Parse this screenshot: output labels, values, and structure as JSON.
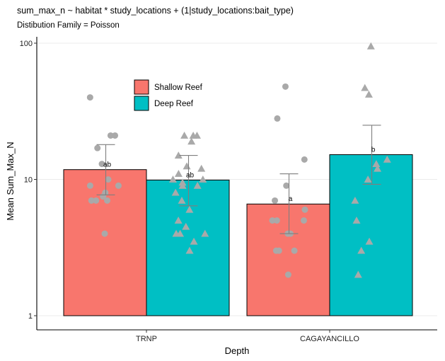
{
  "chart_data": {
    "type": "bar",
    "title": "sum_max_n ~  habitat * study_locations + (1|study_locations:bait_type)",
    "subtitle": "Distibution Family = Poisson",
    "xlabel": "Depth",
    "ylabel": "Mean Sum_Max_N",
    "y_scale": "log10",
    "ylim": [
      1,
      100
    ],
    "y_ticks": [
      1,
      10,
      100
    ],
    "y_tick_labels": [
      "1",
      "10",
      "100"
    ],
    "grid": "horizontal major lines",
    "categories": [
      "TRNP",
      "CAGAYANCILLO"
    ],
    "colors": {
      "Shallow Reef": "#F8766D",
      "Deep Reef": "#00BFC4",
      "points": "#A9A9A9",
      "error_bars": "#7f7f7f"
    },
    "legend": {
      "placement": "inside-top-left",
      "entries": [
        "Shallow Reef",
        "Deep Reef"
      ]
    },
    "series": [
      {
        "name": "Shallow Reef",
        "marker": "circle",
        "values": [
          11.8,
          6.6
        ],
        "error_low": [
          7.7,
          4.0
        ],
        "error_high": [
          18.0,
          11.0
        ],
        "significance_labels": [
          "ab",
          "a"
        ],
        "points": [
          [
            4,
            7,
            7,
            7,
            7.5,
            8,
            9,
            9,
            10,
            13,
            17,
            21,
            21,
            40
          ],
          [
            2,
            3,
            3,
            3,
            4,
            4,
            5,
            5,
            5,
            6,
            7,
            9,
            14,
            28,
            48
          ]
        ]
      },
      {
        "name": "Deep Reef",
        "marker": "triangle",
        "values": [
          9.9,
          15.2
        ],
        "error_low": [
          6.4,
          9.2
        ],
        "error_high": [
          15.0,
          25.0
        ],
        "significance_labels": [
          "ab",
          "b"
        ],
        "points": [
          [
            3,
            3.5,
            4,
            4,
            4,
            4.5,
            5,
            6,
            7,
            8,
            9,
            9,
            9.5,
            10,
            10,
            11,
            12,
            12.5,
            15,
            19,
            21,
            21,
            21
          ],
          [
            2,
            3,
            3.5,
            5,
            7,
            10,
            12,
            13,
            14,
            47,
            42,
            95
          ]
        ]
      }
    ]
  }
}
